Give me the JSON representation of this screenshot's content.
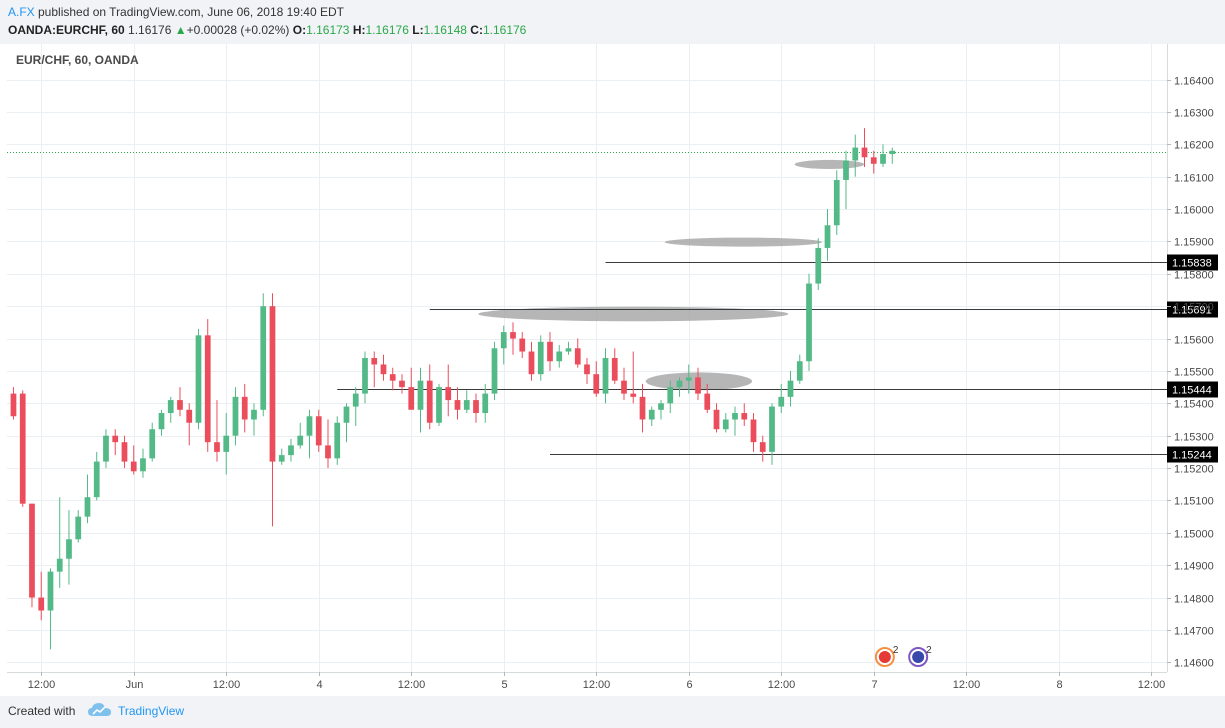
{
  "header": {
    "author": "A.FX",
    "published_text": " published on TradingView.com, June 06, 2018 19:40 EDT",
    "symbol": "OANDA:EURCHF, 60",
    "last_price": "1.16176",
    "arrow": "▲",
    "change": "+0.00028 (+0.02%)",
    "o_label": "O:",
    "o_value": "1.16173",
    "h_label": "H:",
    "h_value": "1.16176",
    "l_label": "L:",
    "l_value": "1.16148",
    "c_label": "C:",
    "c_value": "1.16176"
  },
  "footer": {
    "created_with": "Created with",
    "brand": "TradingView"
  },
  "colors": {
    "up": "#53b987",
    "down": "#eb4d5c",
    "grid": "#e9eff2",
    "annotation": "#9e9e9e",
    "hline": "#3b3b3b",
    "current_price_line": "#2ba84a"
  },
  "chart_data": {
    "type": "candlestick",
    "legend_label": "EUR/CHF, 60, OANDA",
    "y_ticks": [
      "1.16400",
      "1.16300",
      "1.16200",
      "1.16100",
      "1.16000",
      "1.15900",
      "1.15800",
      "1.15700",
      "1.15600",
      "1.15500",
      "1.15400",
      "1.15300",
      "1.15200",
      "1.15100",
      "1.15000",
      "1.14900",
      "1.14800",
      "1.14700",
      "1.14600"
    ],
    "ylim": [
      1.1457,
      1.1651
    ],
    "x_ticks": [
      {
        "bar": 3,
        "label": "12:00"
      },
      {
        "bar": 13,
        "label": "Jun"
      },
      {
        "bar": 23,
        "label": "12:00"
      },
      {
        "bar": 33,
        "label": "4"
      },
      {
        "bar": 43,
        "label": "12:00"
      },
      {
        "bar": 53,
        "label": "5"
      },
      {
        "bar": 63,
        "label": "12:00"
      },
      {
        "bar": 73,
        "label": "6"
      },
      {
        "bar": 83,
        "label": "12:00"
      },
      {
        "bar": 93,
        "label": "7"
      },
      {
        "bar": 103,
        "label": "12:00"
      },
      {
        "bar": 113,
        "label": "8"
      },
      {
        "bar": 123,
        "label": "12:00"
      }
    ],
    "x_bar_range": [
      -0.7,
      124.7
    ],
    "horizontal_levels": [
      {
        "value": 1.15838,
        "label": "1.15838",
        "from_bar": 64
      },
      {
        "value": 1.15691,
        "label": "1.15691",
        "from_bar": 45
      },
      {
        "value": 1.15444,
        "label": "1.15444",
        "from_bar": 35
      },
      {
        "value": 1.15244,
        "label": "1.15244",
        "from_bar": 58
      }
    ],
    "current_price": 1.16176,
    "zones": [
      {
        "center_bar": 74.1,
        "center_price": 1.15468,
        "width_bars": 11.5,
        "height_price": 0.00055
      },
      {
        "center_bar": 67.0,
        "center_price": 1.15676,
        "width_bars": 33.5,
        "height_price": 0.00045
      },
      {
        "center_bar": 78.9,
        "center_price": 1.15898,
        "width_bars": 17.0,
        "height_price": 0.00028
      },
      {
        "center_bar": 88.2,
        "center_price": 1.16138,
        "width_bars": 7.5,
        "height_price": 0.00028
      }
    ],
    "event_markers": [
      {
        "bar": 94.2,
        "count": "2"
      },
      {
        "bar": 97.8,
        "count": "2"
      }
    ],
    "candles": [
      [
        1.1543,
        1.1545,
        1.1535,
        1.1536
      ],
      [
        1.1543,
        1.1544,
        1.1508,
        1.1509
      ],
      [
        1.1509,
        1.1509,
        1.1477,
        1.148
      ],
      [
        1.148,
        1.1488,
        1.1473,
        1.1476
      ],
      [
        1.1476,
        1.1489,
        1.1464,
        1.1488
      ],
      [
        1.1488,
        1.1511,
        1.1483,
        1.1492
      ],
      [
        1.1492,
        1.1507,
        1.1484,
        1.1498
      ],
      [
        1.1498,
        1.1507,
        1.1497,
        1.1505
      ],
      [
        1.1505,
        1.1518,
        1.1503,
        1.1511
      ],
      [
        1.1511,
        1.1525,
        1.151,
        1.1522
      ],
      [
        1.1522,
        1.1532,
        1.152,
        1.153
      ],
      [
        1.153,
        1.1532,
        1.1524,
        1.1528
      ],
      [
        1.1528,
        1.153,
        1.152,
        1.1522
      ],
      [
        1.1522,
        1.1527,
        1.1518,
        1.1519
      ],
      [
        1.1519,
        1.1526,
        1.1517,
        1.1523
      ],
      [
        1.1523,
        1.1534,
        1.1522,
        1.1532
      ],
      [
        1.1532,
        1.1538,
        1.153,
        1.1537
      ],
      [
        1.1537,
        1.1542,
        1.1534,
        1.1541
      ],
      [
        1.1541,
        1.1545,
        1.1536,
        1.1538
      ],
      [
        1.1538,
        1.154,
        1.1527,
        1.1534
      ],
      [
        1.1534,
        1.1563,
        1.1532,
        1.1561
      ],
      [
        1.1561,
        1.1566,
        1.1525,
        1.1528
      ],
      [
        1.1528,
        1.1541,
        1.1522,
        1.1525
      ],
      [
        1.1525,
        1.1537,
        1.1518,
        1.153
      ],
      [
        1.153,
        1.1545,
        1.1527,
        1.1542
      ],
      [
        1.1542,
        1.1546,
        1.1531,
        1.1535
      ],
      [
        1.1535,
        1.154,
        1.153,
        1.1538
      ],
      [
        1.1538,
        1.1574,
        1.1536,
        1.157
      ],
      [
        1.157,
        1.1574,
        1.1502,
        1.1522
      ],
      [
        1.1522,
        1.1526,
        1.1521,
        1.1524
      ],
      [
        1.1524,
        1.1529,
        1.1522,
        1.1527
      ],
      [
        1.1527,
        1.1534,
        1.1526,
        1.153
      ],
      [
        1.153,
        1.1538,
        1.1523,
        1.1536
      ],
      [
        1.1536,
        1.1538,
        1.1525,
        1.1527
      ],
      [
        1.1527,
        1.1535,
        1.152,
        1.1523
      ],
      [
        1.1523,
        1.1536,
        1.1521,
        1.1534
      ],
      [
        1.1534,
        1.154,
        1.1528,
        1.1539
      ],
      [
        1.1539,
        1.1545,
        1.1533,
        1.1543
      ],
      [
        1.1543,
        1.1556,
        1.154,
        1.1554
      ],
      [
        1.1554,
        1.1556,
        1.1545,
        1.1552
      ],
      [
        1.1552,
        1.1555,
        1.1547,
        1.1549
      ],
      [
        1.1549,
        1.1551,
        1.1544,
        1.1547
      ],
      [
        1.1547,
        1.1549,
        1.1543,
        1.1545
      ],
      [
        1.1545,
        1.1551,
        1.1539,
        1.1538
      ],
      [
        1.1538,
        1.1551,
        1.1531,
        1.1547
      ],
      [
        1.1547,
        1.1552,
        1.1532,
        1.1534
      ],
      [
        1.1534,
        1.1546,
        1.1533,
        1.1545
      ],
      [
        1.1545,
        1.1552,
        1.1536,
        1.1541
      ],
      [
        1.1541,
        1.1545,
        1.1535,
        1.1538
      ],
      [
        1.1538,
        1.1544,
        1.1537,
        1.1541
      ],
      [
        1.1541,
        1.1543,
        1.1534,
        1.1537
      ],
      [
        1.1537,
        1.1546,
        1.1534,
        1.1543
      ],
      [
        1.1543,
        1.1559,
        1.1541,
        1.1557
      ],
      [
        1.1557,
        1.1564,
        1.1552,
        1.1562
      ],
      [
        1.1562,
        1.1565,
        1.1555,
        1.156
      ],
      [
        1.156,
        1.1562,
        1.1554,
        1.1556
      ],
      [
        1.1556,
        1.1559,
        1.1547,
        1.1549
      ],
      [
        1.1549,
        1.1561,
        1.1547,
        1.1559
      ],
      [
        1.1559,
        1.1562,
        1.155,
        1.1553
      ],
      [
        1.1553,
        1.1558,
        1.1551,
        1.1556
      ],
      [
        1.1556,
        1.1559,
        1.1555,
        1.1557
      ],
      [
        1.1557,
        1.156,
        1.1551,
        1.1552
      ],
      [
        1.1552,
        1.1554,
        1.1546,
        1.1549
      ],
      [
        1.1549,
        1.1553,
        1.1542,
        1.1543
      ],
      [
        1.1543,
        1.1557,
        1.154,
        1.1554
      ],
      [
        1.1554,
        1.1557,
        1.1546,
        1.1547
      ],
      [
        1.1547,
        1.1551,
        1.1541,
        1.1543
      ],
      [
        1.1543,
        1.1556,
        1.154,
        1.1542
      ],
      [
        1.1542,
        1.1546,
        1.1531,
        1.1535
      ],
      [
        1.1535,
        1.1539,
        1.1533,
        1.1538
      ],
      [
        1.1538,
        1.1541,
        1.1535,
        1.154
      ],
      [
        1.154,
        1.1547,
        1.1537,
        1.1545
      ],
      [
        1.1545,
        1.1548,
        1.1542,
        1.1547
      ],
      [
        1.1547,
        1.1552,
        1.1543,
        1.1548
      ],
      [
        1.1548,
        1.1551,
        1.1541,
        1.1543
      ],
      [
        1.1543,
        1.1546,
        1.1537,
        1.1538
      ],
      [
        1.1538,
        1.154,
        1.1531,
        1.1532
      ],
      [
        1.1532,
        1.1537,
        1.1531,
        1.1535
      ],
      [
        1.1535,
        1.1539,
        1.153,
        1.1537
      ],
      [
        1.1537,
        1.154,
        1.1533,
        1.1535
      ],
      [
        1.1535,
        1.1537,
        1.1525,
        1.1528
      ],
      [
        1.1528,
        1.153,
        1.1522,
        1.1525
      ],
      [
        1.1525,
        1.154,
        1.1521,
        1.1539
      ],
      [
        1.1539,
        1.1546,
        1.1537,
        1.1542
      ],
      [
        1.1542,
        1.155,
        1.1539,
        1.1547
      ],
      [
        1.1547,
        1.1555,
        1.1546,
        1.1553
      ],
      [
        1.1553,
        1.158,
        1.155,
        1.1577
      ],
      [
        1.1577,
        1.1591,
        1.1575,
        1.1588
      ],
      [
        1.1588,
        1.16,
        1.1584,
        1.1595
      ],
      [
        1.1595,
        1.1612,
        1.1592,
        1.1609
      ],
      [
        1.1609,
        1.1618,
        1.16,
        1.1615
      ],
      [
        1.1615,
        1.1623,
        1.161,
        1.1619
      ],
      [
        1.1619,
        1.1625,
        1.1613,
        1.1616
      ],
      [
        1.1616,
        1.1618,
        1.1611,
        1.1614
      ],
      [
        1.1614,
        1.162,
        1.1613,
        1.1617
      ],
      [
        1.1617,
        1.1619,
        1.1614,
        1.1618
      ]
    ]
  }
}
